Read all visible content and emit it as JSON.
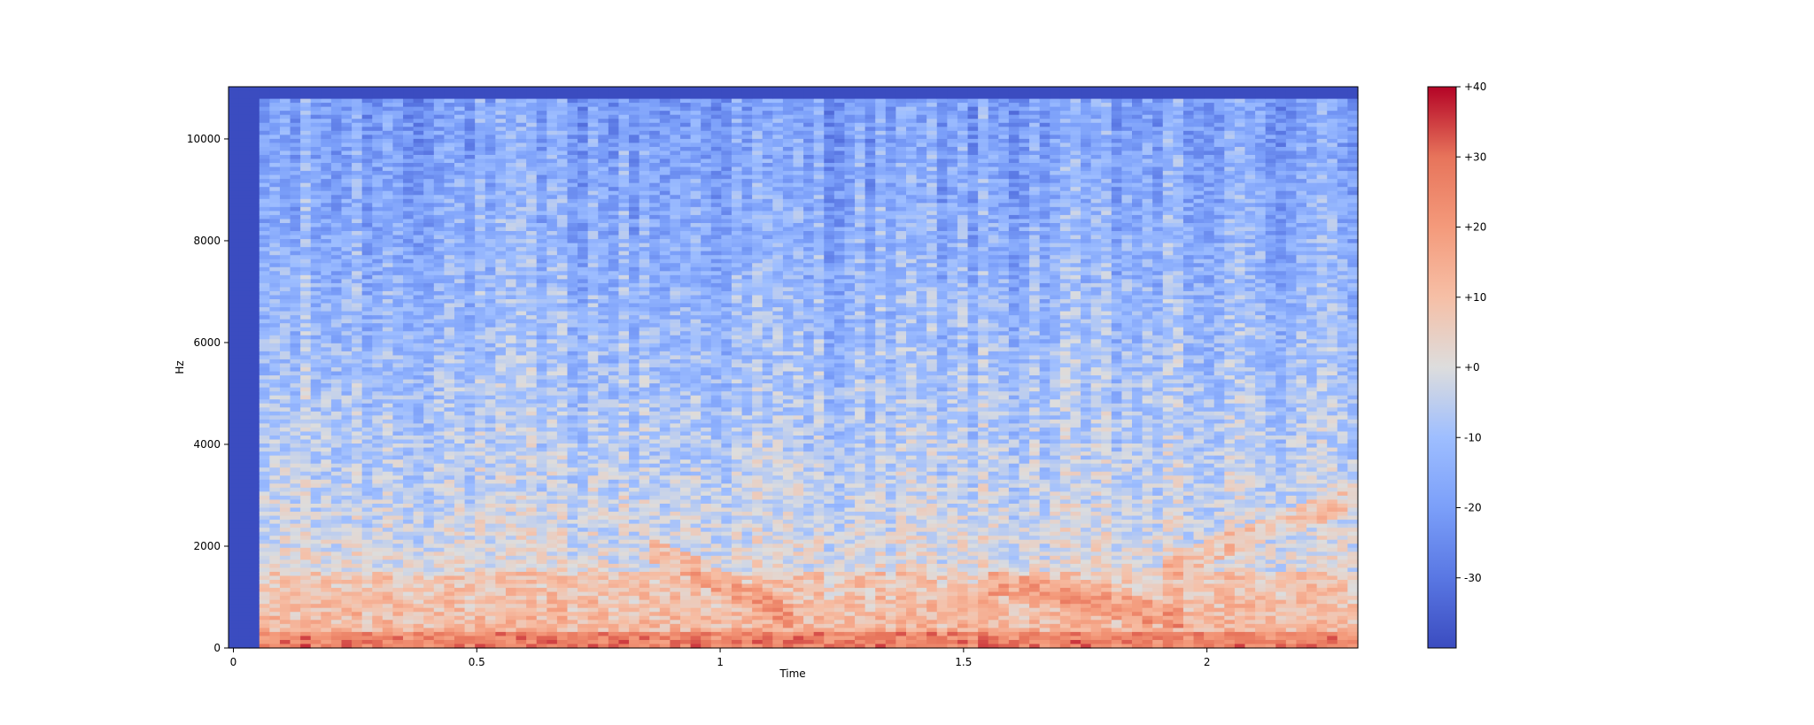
{
  "chart_data": {
    "type": "heatmap",
    "subtype": "spectrogram",
    "title": "",
    "xlabel": "Time",
    "ylabel": "Hz",
    "xlim": [
      -0.01,
      2.31
    ],
    "ylim": [
      0,
      11025
    ],
    "x_ticks": [
      0,
      0.5,
      1,
      1.5,
      2
    ],
    "x_tick_labels": [
      "0",
      "0.5",
      "1",
      "1.5",
      "2"
    ],
    "y_ticks": [
      0,
      2000,
      4000,
      6000,
      8000,
      10000
    ],
    "y_tick_labels": [
      "0",
      "2000",
      "4000",
      "6000",
      "8000",
      "10000"
    ],
    "colormap": "coolwarm",
    "colorbar": {
      "range": [
        -40,
        40
      ],
      "ticks": [
        40,
        30,
        20,
        10,
        0,
        -10,
        -20,
        -30
      ],
      "tick_labels": [
        "+40",
        "+30",
        "+20",
        "+10",
        "+0",
        "-10",
        "-20",
        "-30"
      ],
      "colors": {
        "low": "#3b4cc0",
        "mid": "#dddddd",
        "high": "#b40426"
      }
    },
    "approx_features": {
      "silence_until_time": 0.05,
      "upper_band_level": -20,
      "lower_band_level": 10,
      "strong_low_frequency_band_hz": [
        0,
        300
      ],
      "rising_harmonic_tracks": [
        {
          "time": [
            0.85,
            1.15
          ],
          "hz": [
            2000,
            600
          ]
        },
        {
          "time": [
            1.55,
            1.95
          ],
          "hz": [
            1300,
            600
          ]
        },
        {
          "time": [
            1.9,
            2.31
          ],
          "hz": [
            1500,
            3000
          ]
        }
      ]
    }
  }
}
